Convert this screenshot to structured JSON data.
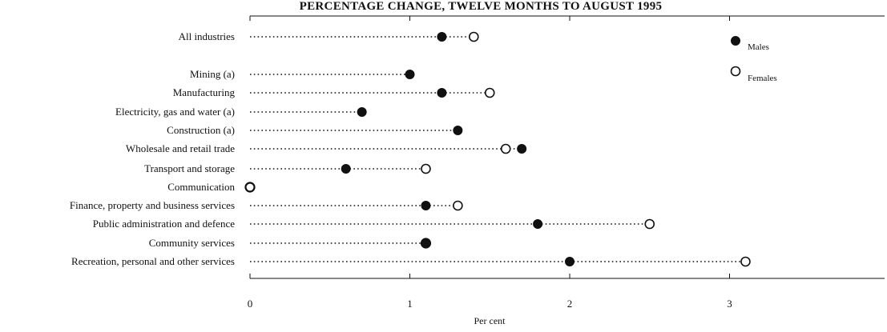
{
  "chart_data": {
    "type": "scatter",
    "title": "PERCENTAGE CHANGE, TWELVE MONTHS TO AUGUST 1995",
    "xlabel": "Per cent",
    "ylabel": "",
    "xlim": [
      0,
      4
    ],
    "xticks": [
      0,
      1,
      2,
      3
    ],
    "xtick_labels": [
      "0",
      "1",
      "2",
      "3"
    ],
    "categories": [
      "All industries",
      "Mining (a)",
      "Manufacturing",
      "Electricity, gas and water (a)",
      "Construction (a)",
      "Wholesale and retail trade",
      "Transport and storage",
      "Communication",
      "Finance, property and business services",
      "Public administration and defence",
      "Community services",
      "Recreation, personal and other services"
    ],
    "series": [
      {
        "name": "Males",
        "marker": "filled-circle",
        "values": [
          1.2,
          1.0,
          1.2,
          0.7,
          1.3,
          1.7,
          0.6,
          0.0,
          1.1,
          1.8,
          1.1,
          2.0
        ]
      },
      {
        "name": "Females",
        "marker": "open-circle",
        "values": [
          1.4,
          null,
          1.5,
          null,
          null,
          1.6,
          1.1,
          0.0,
          1.3,
          2.5,
          1.1,
          3.1
        ]
      }
    ],
    "legend_position": "top-right",
    "grid": false
  },
  "colors": {
    "ink": "#111111",
    "background": "#ffffff"
  }
}
